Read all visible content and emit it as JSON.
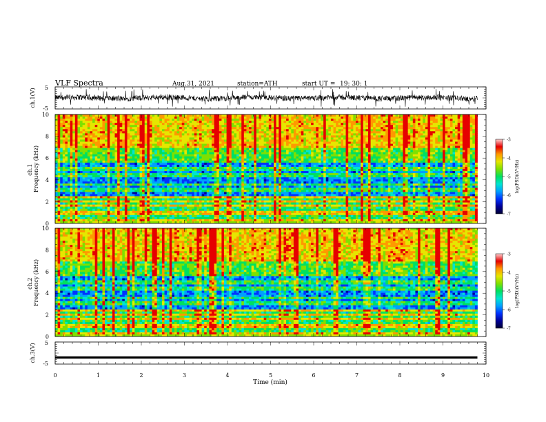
{
  "header": {
    "title": "VLF  Spectra",
    "date": "Aug.31, 2021",
    "station": "station=ATH",
    "start_label": "start  UT  =",
    "start_time": "19: 30: 1"
  },
  "colors": {
    "background": "#ffffff",
    "axes": "#000000",
    "signal": "#000000",
    "colormap": [
      "#000033",
      "#000099",
      "#0033ff",
      "#00a0ff",
      "#00e5d0",
      "#00e060",
      "#7fe000",
      "#e6e600",
      "#ff9900",
      "#e60000",
      "#ffd0d0"
    ]
  },
  "chart_data": [
    {
      "id": "ch1-waveform",
      "type": "line",
      "ylabel": "ch.1(V)",
      "y_ticks": [
        "5",
        "-5"
      ],
      "ylim": [
        -5,
        5
      ],
      "xlim": [
        0,
        10
      ],
      "trace_end_min": 9.8,
      "description_values": {
        "baseline_V": 0.0,
        "typical_amplitude_V": 2.5,
        "max_spike_V": 4.0
      }
    },
    {
      "id": "ch1-spectrogram",
      "type": "heatmap",
      "ylabel": "ch.1\nFrequency  (kHz)",
      "y_ticks": [
        "0",
        "2",
        "4",
        "6",
        "8",
        "10"
      ],
      "ylim": [
        0,
        10
      ],
      "xlim": [
        0,
        10
      ],
      "trace_end_min": 9.8,
      "colorbar": {
        "label": "log(PSD)(V²/Hz)",
        "ticks": [
          "-3",
          "-4",
          "-5",
          "-6",
          "-7"
        ],
        "range": [
          -7,
          -3
        ]
      }
    },
    {
      "id": "ch2-spectrogram",
      "type": "heatmap",
      "ylabel": "ch.2\nFrequency  (kHz)",
      "y_ticks": [
        "0",
        "2",
        "4",
        "6",
        "8",
        "10"
      ],
      "ylim": [
        0,
        10
      ],
      "xlim": [
        0,
        10
      ],
      "trace_end_min": 9.8,
      "colorbar": {
        "label": "log(PSD)(V²/Hz)",
        "ticks": [
          "-3",
          "-4",
          "-5",
          "-6",
          "-7"
        ],
        "range": [
          -7,
          -3
        ]
      }
    },
    {
      "id": "ch3-waveform",
      "type": "line",
      "ylabel": "ch.3(V)",
      "y_ticks": [
        "5",
        "-5"
      ],
      "ylim": [
        -5,
        5
      ],
      "xlim": [
        0,
        10
      ],
      "xlabel": "Time  (min)",
      "x_ticks": [
        "0",
        "1",
        "2",
        "3",
        "4",
        "5",
        "6",
        "7",
        "8",
        "9",
        "10"
      ],
      "trace_end_min": 9.8,
      "level_V": -2.0
    }
  ]
}
